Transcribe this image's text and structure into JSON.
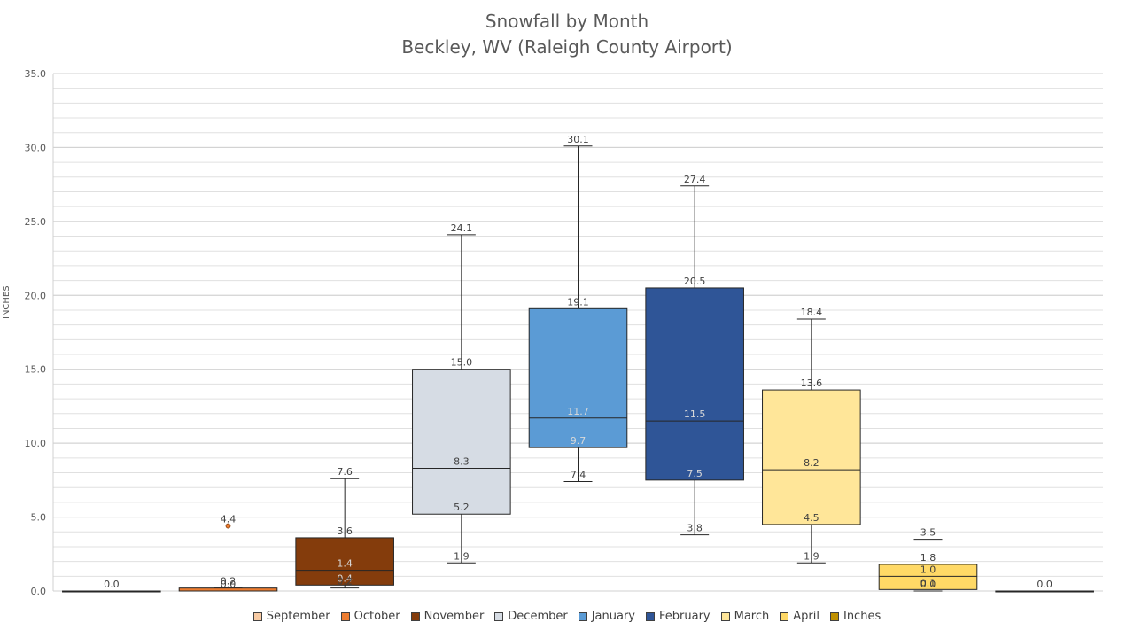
{
  "chart_data": {
    "type": "box",
    "title": "Snowfall by Month",
    "subtitle": "Beckley, WV (Raleigh County Airport)",
    "ylabel": "INCHES",
    "ylim": [
      0,
      35
    ],
    "yticks": [
      "0.0",
      "5.0",
      "10.0",
      "15.0",
      "20.0",
      "25.0",
      "30.0",
      "35.0"
    ],
    "grid": true,
    "legend_position": "bottom",
    "series": [
      {
        "name": "September",
        "color": "#f8cba4",
        "min": 0.0,
        "q1": 0.0,
        "median": 0.0,
        "q3": 0.0,
        "max": 0.0,
        "outliers": [],
        "labels": [
          "0.0"
        ]
      },
      {
        "name": "October",
        "color": "#ed7d31",
        "min": 0.0,
        "q1": 0.0,
        "median": 0.0,
        "q3": 0.2,
        "max": 0.2,
        "outliers": [
          4.4
        ],
        "labels": [
          "4.4",
          "0.2",
          "0.0"
        ]
      },
      {
        "name": "November",
        "color": "#843c0c",
        "min": 0.2,
        "q1": 0.4,
        "median": 1.4,
        "q3": 3.6,
        "max": 7.6,
        "outliers": [],
        "labels": [
          "7.6",
          "3.6",
          "1.4",
          "0.4",
          "0.2"
        ]
      },
      {
        "name": "December",
        "color": "#d6dce4",
        "min": 1.9,
        "q1": 5.2,
        "median": 8.3,
        "q3": 15.0,
        "max": 24.1,
        "outliers": [],
        "labels": [
          "24.1",
          "15.0",
          "8.3",
          "5.2",
          "1.9"
        ]
      },
      {
        "name": "January",
        "color": "#5b9bd5",
        "min": 7.4,
        "q1": 9.7,
        "median": 11.7,
        "q3": 19.1,
        "max": 30.1,
        "outliers": [],
        "labels": [
          "30.1",
          "19.1",
          "11.7",
          "9.7",
          "7.4"
        ]
      },
      {
        "name": "February",
        "color": "#2f5597",
        "min": 3.8,
        "q1": 7.5,
        "median": 11.5,
        "q3": 20.5,
        "max": 27.4,
        "outliers": [],
        "labels": [
          "27.4",
          "20.5",
          "11.5",
          "7.5",
          "3.8"
        ]
      },
      {
        "name": "March",
        "color": "#ffe699",
        "min": 1.9,
        "q1": 4.5,
        "median": 8.2,
        "q3": 13.6,
        "max": 18.4,
        "outliers": [],
        "labels": [
          "18.4",
          "13.6",
          "8.2",
          "4.5",
          "1.9"
        ]
      },
      {
        "name": "April",
        "color": "#ffd966",
        "min": 0.0,
        "q1": 0.1,
        "median": 1.0,
        "q3": 1.8,
        "max": 3.5,
        "outliers": [],
        "labels": [
          "3.5",
          "1.8",
          "1.0",
          "0.1",
          "0.0"
        ]
      },
      {
        "name": "Inches",
        "color": "#bf9000",
        "min": 0.0,
        "q1": 0.0,
        "median": 0.0,
        "q3": 0.0,
        "max": 0.0,
        "outliers": [],
        "labels": [
          "0.0"
        ]
      }
    ]
  }
}
